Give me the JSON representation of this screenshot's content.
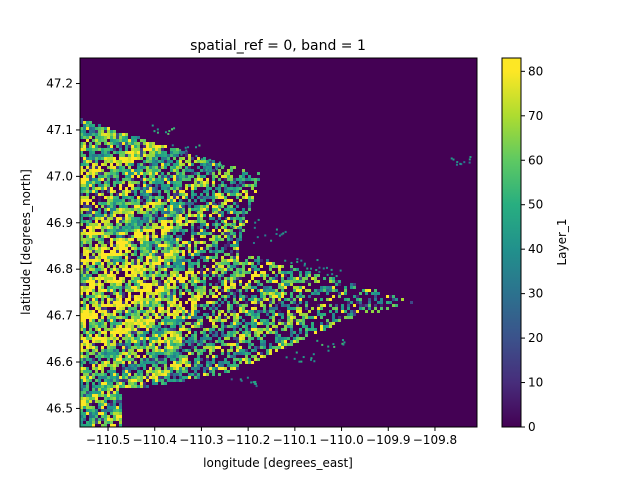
{
  "chart_data": {
    "type": "heatmap",
    "title": "spatial_ref = 0, band = 1",
    "xlabel": "longitude [degrees_east]",
    "ylabel": "latitude [degrees_north]",
    "colorbar_label": "Layer_1",
    "colormap": "viridis",
    "xlim": [
      -110.56,
      -109.71
    ],
    "ylim": [
      46.46,
      47.255
    ],
    "xticks": [
      {
        "value": -110.5,
        "label": "−110.5"
      },
      {
        "value": -110.4,
        "label": "−110.4"
      },
      {
        "value": -110.3,
        "label": "−110.3"
      },
      {
        "value": -110.2,
        "label": "−110.2"
      },
      {
        "value": -110.1,
        "label": "−110.1"
      },
      {
        "value": -110.0,
        "label": "−110.0"
      },
      {
        "value": -109.9,
        "label": "−109.9"
      },
      {
        "value": -109.8,
        "label": "−109.8"
      }
    ],
    "yticks": [
      {
        "value": 46.5,
        "label": "46.5"
      },
      {
        "value": 46.6,
        "label": "46.6"
      },
      {
        "value": 46.7,
        "label": "46.7"
      },
      {
        "value": 46.8,
        "label": "46.8"
      },
      {
        "value": 46.9,
        "label": "46.9"
      },
      {
        "value": 47.0,
        "label": "47.0"
      },
      {
        "value": 47.1,
        "label": "47.1"
      },
      {
        "value": 47.2,
        "label": "47.2"
      }
    ],
    "colorbar_range": [
      0,
      83
    ],
    "colorbar_ticks": [
      {
        "value": 0,
        "label": "0"
      },
      {
        "value": 10,
        "label": "10"
      },
      {
        "value": 20,
        "label": "20"
      },
      {
        "value": 30,
        "label": "30"
      },
      {
        "value": 40,
        "label": "40"
      },
      {
        "value": 50,
        "label": "50"
      },
      {
        "value": 60,
        "label": "60"
      },
      {
        "value": 70,
        "label": "70"
      },
      {
        "value": 80,
        "label": "80"
      }
    ],
    "background_value": 0,
    "colors": {
      "v0": "#440154",
      "v10": "#472d7b",
      "v20": "#3b528b",
      "v30": "#2c728e",
      "v40": "#21918c",
      "v50": "#28ae80",
      "v60": "#5ec962",
      "v70": "#addc30",
      "v80": "#fde725"
    },
    "data_regions": [
      {
        "lon": -110.5,
        "lat": 47.1,
        "value": 55
      },
      {
        "lon": -110.44,
        "lat": 47.06,
        "value": 60
      },
      {
        "lon": -110.48,
        "lat": 47.0,
        "value": 65
      },
      {
        "lon": -110.4,
        "lat": 46.98,
        "value": 50
      },
      {
        "lon": -110.46,
        "lat": 46.92,
        "value": 60
      },
      {
        "lon": -110.35,
        "lat": 46.95,
        "value": 55
      },
      {
        "lon": -110.42,
        "lat": 46.86,
        "value": 65
      },
      {
        "lon": -110.5,
        "lat": 46.82,
        "value": 70
      },
      {
        "lon": -110.33,
        "lat": 46.86,
        "value": 55
      },
      {
        "lon": -110.44,
        "lat": 46.76,
        "value": 75
      },
      {
        "lon": -110.35,
        "lat": 46.74,
        "value": 65
      },
      {
        "lon": -110.25,
        "lat": 46.75,
        "value": 60
      },
      {
        "lon": -110.15,
        "lat": 46.73,
        "value": 55
      },
      {
        "lon": -110.05,
        "lat": 46.72,
        "value": 55
      },
      {
        "lon": -109.95,
        "lat": 46.71,
        "value": 50
      },
      {
        "lon": -110.48,
        "lat": 46.68,
        "value": 70
      },
      {
        "lon": -110.38,
        "lat": 46.66,
        "value": 60
      },
      {
        "lon": -110.28,
        "lat": 46.68,
        "value": 55
      },
      {
        "lon": -110.45,
        "lat": 46.6,
        "value": 55
      },
      {
        "lon": -110.32,
        "lat": 46.61,
        "value": 50
      },
      {
        "lon": -110.5,
        "lat": 46.48,
        "value": 55
      }
    ]
  }
}
